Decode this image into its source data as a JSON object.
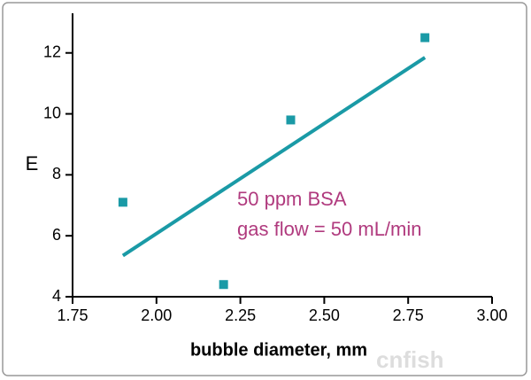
{
  "chart_data": {
    "type": "scatter",
    "x_label": "bubble diameter, mm",
    "y_label": "E",
    "annotations": [
      "50 ppm BSA",
      "gas flow = 50 mL/min"
    ],
    "annotation_color": "#b03a7e",
    "watermark": "cnfish",
    "color": "#1a9aa6",
    "x": [
      1.9,
      2.2,
      2.4,
      2.8
    ],
    "values": [
      7.1,
      4.4,
      9.8,
      12.5
    ],
    "fit_line": {
      "x": [
        1.9,
        2.8
      ],
      "values": [
        5.35,
        11.85
      ]
    },
    "xlim": [
      1.75,
      3.0
    ],
    "xticks": [
      1.75,
      {
        "value": 2,
        "label": "2.00"
      },
      2.25,
      {
        "value": 2.5,
        "label": "2.50"
      },
      2.75,
      {
        "value": 3,
        "label": "3.00"
      }
    ],
    "ylim": [
      4,
      13.3
    ],
    "yticks": [
      4,
      6,
      8,
      10,
      12
    ]
  }
}
